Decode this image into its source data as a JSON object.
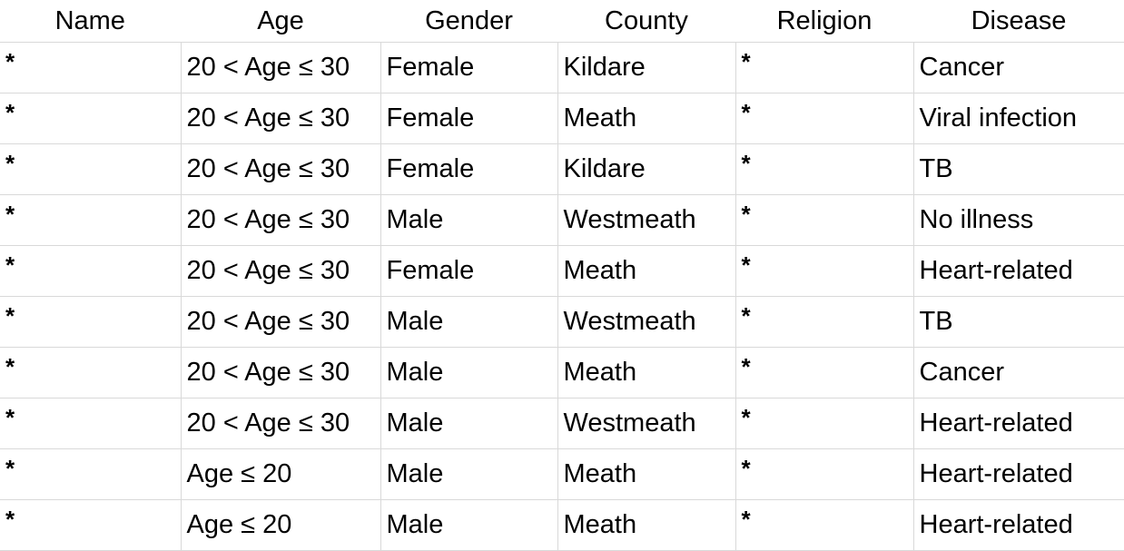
{
  "table": {
    "headers": [
      "Name",
      "Age",
      "Gender",
      "County",
      "Religion",
      "Disease"
    ],
    "rows": [
      [
        "*",
        "20 < Age ≤ 30",
        "Female",
        "Kildare",
        "*",
        "Cancer"
      ],
      [
        "*",
        "20 < Age ≤ 30",
        "Female",
        "Meath",
        "*",
        "Viral infection"
      ],
      [
        "*",
        "20 < Age ≤ 30",
        "Female",
        "Kildare",
        "*",
        "TB"
      ],
      [
        "*",
        "20 < Age ≤ 30",
        "Male",
        "Westmeath",
        "*",
        "No illness"
      ],
      [
        "*",
        "20 < Age ≤ 30",
        "Female",
        "Meath",
        "*",
        "Heart-related"
      ],
      [
        "*",
        "20 < Age ≤ 30",
        "Male",
        "Westmeath",
        "*",
        "TB"
      ],
      [
        "*",
        "20 < Age ≤ 30",
        "Male",
        "Meath",
        "*",
        "Cancer"
      ],
      [
        "*",
        "20 < Age ≤ 30",
        "Male",
        "Westmeath",
        "*",
        "Heart-related"
      ],
      [
        "*",
        "Age ≤ 20",
        "Male",
        "Meath",
        "*",
        "Heart-related"
      ],
      [
        "*",
        "Age ≤ 20",
        "Male",
        "Meath",
        "*",
        "Heart-related"
      ]
    ]
  }
}
